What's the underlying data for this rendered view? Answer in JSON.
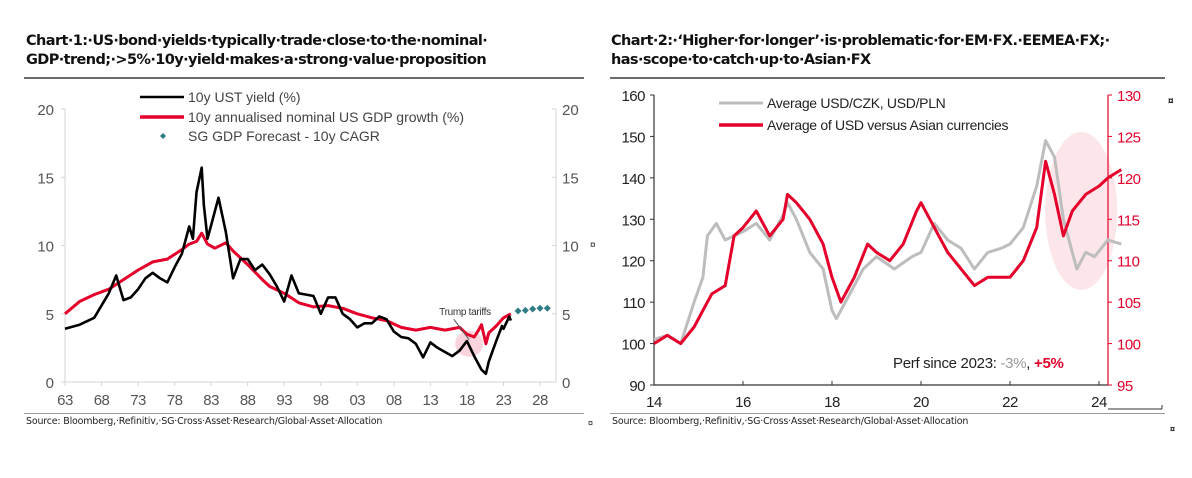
{
  "chart1": {
    "title_line1": "Chart·1:·US·bond·yields·typically·trade·close·to·the·nominal·",
    "title_line2": "GDP·trend;·>5%·10y·yield·makes·a·strong·value·proposition",
    "source": "Source: Bloomberg,·Refinitiv,·SG·Cross·Asset·Research/Global·Asset·Allocation",
    "pilcrow": "¤"
  },
  "chart2": {
    "title_line1": "Chart·2:·‘Higher·for·longer’·is·problematic·for·EM·FX.·EEMEA·FX;·",
    "title_line2": "has·scope·to·catch·up·to·Asian·FX",
    "source": "Source: Bloomberg,·Refinitiv,·SG·Cross·Asset·Research/Global·Asset·Allocation",
    "pilcrow": "¤"
  },
  "colors": {
    "black": "#000000",
    "red": "#e4002b",
    "grey": "#bdbdbd",
    "teal": "#2e7d86",
    "pink": "#f9c9d3",
    "axis": "#d0d0d0"
  },
  "chart_data": [
    {
      "type": "line",
      "title": "US bond yields typically trade close to the nominal GDP trend; >5% 10y yield makes a strong value proposition",
      "xlabel": "",
      "ylabel": "",
      "xlim": [
        1963,
        2029
      ],
      "ylim": [
        0,
        20
      ],
      "x_ticks": [
        "63",
        "68",
        "73",
        "78",
        "83",
        "88",
        "93",
        "98",
        "03",
        "08",
        "13",
        "18",
        "23",
        "28"
      ],
      "y_ticks_left": [
        "0",
        "5",
        "10",
        "15",
        "20"
      ],
      "y_ticks_right": [
        "0",
        "5",
        "10",
        "15",
        "20"
      ],
      "legend_position": "top-center",
      "annotation": {
        "text": "Trump tariffs",
        "x": 2018.5,
        "y": 3.0
      },
      "series": [
        {
          "name": "10y UST yield (%)",
          "color": "#000000",
          "x": [
            1963,
            1965,
            1967,
            1968,
            1969,
            1970,
            1971,
            1972,
            1973,
            1974,
            1975,
            1976,
            1977,
            1978,
            1979,
            1980,
            1980.5,
            1981,
            1981.7,
            1982,
            1982.5,
            1983,
            1984,
            1985,
            1986,
            1987,
            1988,
            1989,
            1990,
            1991,
            1992,
            1993,
            1994,
            1995,
            1996,
            1997,
            1998,
            1999,
            2000,
            2001,
            2002,
            2003,
            2004,
            2005,
            2006,
            2007,
            2008,
            2009,
            2010,
            2011,
            2012,
            2013,
            2014,
            2015,
            2016,
            2017,
            2018,
            2019,
            2020,
            2020.6,
            2021,
            2022,
            2022.8,
            2023,
            2023.8,
            2024
          ],
          "y": [
            3.9,
            4.2,
            4.7,
            5.6,
            6.5,
            7.8,
            6.0,
            6.2,
            6.8,
            7.6,
            8.0,
            7.6,
            7.3,
            8.4,
            9.4,
            11.4,
            10.5,
            13.9,
            15.7,
            13.0,
            10.5,
            11.5,
            13.5,
            11.0,
            7.6,
            9.0,
            9.0,
            8.2,
            8.6,
            7.9,
            7.0,
            5.9,
            7.8,
            6.5,
            6.4,
            6.3,
            5.0,
            6.2,
            6.2,
            5.0,
            4.6,
            4.0,
            4.3,
            4.3,
            4.8,
            4.6,
            3.7,
            3.3,
            3.2,
            2.8,
            1.8,
            2.9,
            2.5,
            2.2,
            1.9,
            2.3,
            3.0,
            1.9,
            0.9,
            0.6,
            1.5,
            3.0,
            4.1,
            3.9,
            4.8,
            4.5
          ]
        },
        {
          "name": "10y annualised nominal US GDP growth (%)",
          "color": "#e4002b",
          "x": [
            1963,
            1965,
            1967,
            1969,
            1971,
            1973,
            1975,
            1977,
            1979,
            1980,
            1981,
            1981.7,
            1982.5,
            1983.5,
            1985,
            1986,
            1988,
            1990,
            1991,
            1993,
            1995,
            1997,
            1999,
            2001,
            2003,
            2005,
            2007,
            2009,
            2011,
            2013,
            2015,
            2017,
            2018,
            2019,
            2019.6,
            2020,
            2020.6,
            2021,
            2022,
            2023,
            2024
          ],
          "y": [
            5.0,
            5.9,
            6.4,
            6.8,
            7.5,
            8.2,
            8.8,
            9.0,
            9.7,
            10.1,
            10.3,
            10.9,
            10.1,
            9.8,
            10.2,
            9.6,
            8.6,
            7.5,
            7.0,
            6.5,
            5.8,
            5.5,
            5.6,
            5.4,
            5.0,
            4.7,
            4.5,
            4.0,
            3.8,
            4.0,
            3.8,
            4.0,
            3.5,
            3.3,
            3.8,
            4.2,
            2.8,
            3.6,
            4.1,
            4.7,
            5.0
          ]
        },
        {
          "name": "SG GDP Forecast - 10y CAGR",
          "color": "#2e7d86",
          "marker": "diamond",
          "x": [
            2025,
            2026,
            2027,
            2028,
            2029
          ],
          "y": [
            5.2,
            5.25,
            5.35,
            5.4,
            5.4
          ]
        }
      ]
    },
    {
      "type": "line",
      "title": "‘Higher for longer’ is problematic for EM FX. EEMEA FX; has scope to catch up to Asian FX",
      "xlabel": "",
      "ylabel": "",
      "xlim": [
        2014,
        2025.2
      ],
      "ylim_left": [
        90,
        160
      ],
      "ylim_right": [
        95,
        130
      ],
      "x_ticks": [
        "14",
        "16",
        "18",
        "20",
        "22",
        "24"
      ],
      "y_ticks_left": [
        "90",
        "100",
        "110",
        "120",
        "130",
        "140",
        "150",
        "160"
      ],
      "y_ticks_right": [
        "95",
        "100",
        "105",
        "110",
        "115",
        "120",
        "125",
        "130"
      ],
      "legend_position": "top-left",
      "annotation": {
        "text_prefix": "Perf since 2023:",
        "grey_value": "-3%",
        "separator": ",",
        "red_value": "+5%"
      },
      "series": [
        {
          "name": "Average USD/CZK, USD/PLN",
          "axis": "left",
          "color": "#bdbdbd",
          "x": [
            2014,
            2014.3,
            2014.6,
            2014.9,
            2015.1,
            2015.2,
            2015.4,
            2015.6,
            2015.8,
            2016,
            2016.3,
            2016.6,
            2016.9,
            2017,
            2017.2,
            2017.5,
            2017.8,
            2018,
            2018.1,
            2018.4,
            2018.7,
            2019,
            2019.4,
            2019.8,
            2020,
            2020.3,
            2020.6,
            2020.9,
            2021.2,
            2021.5,
            2021.8,
            2022,
            2022.3,
            2022.6,
            2022.8,
            2023,
            2023.2,
            2023.5,
            2023.7,
            2023.9,
            2024.2,
            2024.5
          ],
          "y": [
            101,
            102,
            100,
            110,
            116,
            126,
            129,
            125,
            126,
            127,
            129,
            125,
            131,
            134,
            130,
            122,
            118,
            108,
            106,
            112,
            118,
            121,
            118,
            121,
            122,
            129,
            125,
            123,
            118,
            122,
            123,
            124,
            128,
            138,
            149,
            145,
            130,
            118,
            122,
            121,
            125,
            124
          ]
        },
        {
          "name": "Average of USD versus Asian currencies",
          "axis": "right",
          "color": "#e4002b",
          "x": [
            2014,
            2014.3,
            2014.6,
            2014.9,
            2015.1,
            2015.3,
            2015.6,
            2015.8,
            2016,
            2016.3,
            2016.6,
            2016.9,
            2017,
            2017.2,
            2017.5,
            2017.8,
            2018,
            2018.2,
            2018.5,
            2018.8,
            2019,
            2019.3,
            2019.6,
            2019.9,
            2020,
            2020.3,
            2020.6,
            2020.9,
            2021.2,
            2021.5,
            2021.8,
            2022,
            2022.3,
            2022.6,
            2022.8,
            2023,
            2023.2,
            2023.4,
            2023.7,
            2024,
            2024.2,
            2024.5
          ],
          "y": [
            100,
            101,
            100,
            102,
            104,
            106,
            107,
            113,
            114,
            116,
            113,
            115,
            118,
            117,
            115,
            112,
            108,
            105,
            108,
            112,
            111,
            110,
            112,
            116,
            117,
            114,
            111,
            109,
            107,
            108,
            108,
            108,
            110,
            114,
            122,
            118,
            113,
            116,
            118,
            119,
            120,
            121
          ]
        }
      ]
    }
  ]
}
